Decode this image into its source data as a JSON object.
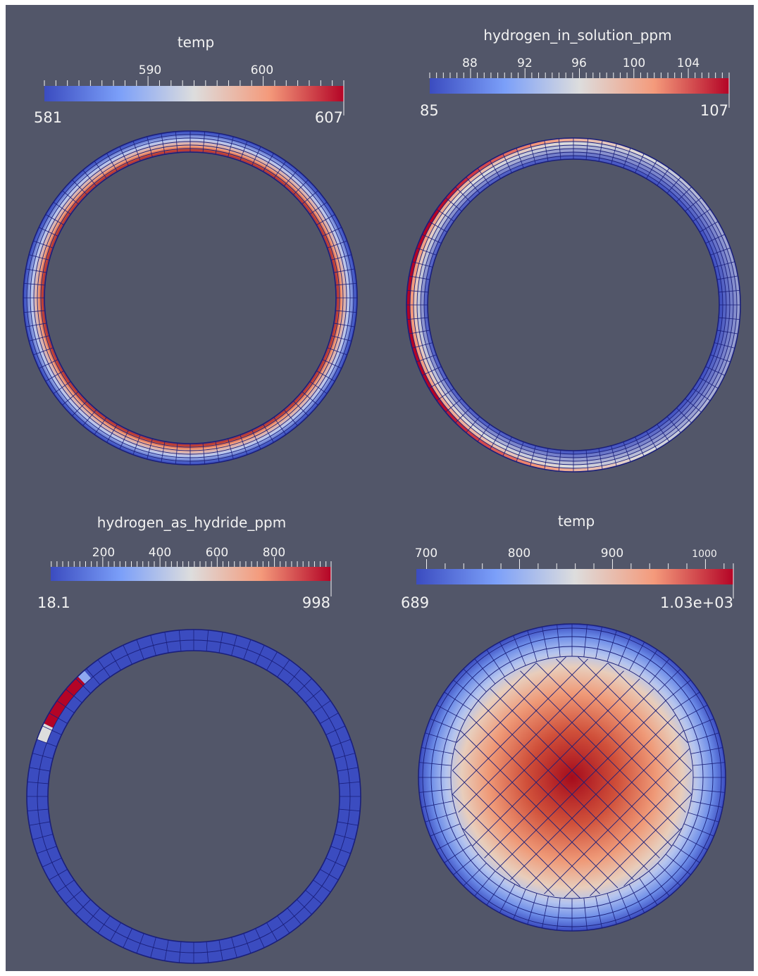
{
  "panels": [
    {
      "id": "panel-1",
      "title": "temp",
      "min_label": "581",
      "max_label": "607",
      "range": [
        581,
        607
      ],
      "major_ticks": [
        {
          "value": 590,
          "label": "590"
        },
        {
          "value": 600,
          "label": "600"
        }
      ],
      "shape": "ring",
      "hot_side": "inner"
    },
    {
      "id": "panel-2",
      "title": "hydrogen_in_solution_ppm",
      "min_label": "85",
      "max_label": "107",
      "range": [
        85,
        107
      ],
      "major_ticks": [
        {
          "value": 88,
          "label": "88"
        },
        {
          "value": 92,
          "label": "92"
        },
        {
          "value": 96,
          "label": "96"
        },
        {
          "value": 100,
          "label": "100"
        },
        {
          "value": 104,
          "label": "104"
        }
      ],
      "shape": "ring",
      "hot_side": "outer-left"
    },
    {
      "id": "panel-3",
      "title": "hydrogen_as_hydride_ppm",
      "min_label": "18.1",
      "max_label": "998",
      "range": [
        18.1,
        998
      ],
      "major_ticks": [
        {
          "value": 200,
          "label": "200"
        },
        {
          "value": 400,
          "label": "400"
        },
        {
          "value": 600,
          "label": "600"
        },
        {
          "value": 800,
          "label": "800"
        }
      ],
      "shape": "ring",
      "hot_side": "outer-upper-left-sliver"
    },
    {
      "id": "panel-4",
      "title": "temp",
      "min_label": "689",
      "max_label": "1.03e+03",
      "range": [
        689,
        1030
      ],
      "major_ticks": [
        {
          "value": 700,
          "label": "700"
        },
        {
          "value": 800,
          "label": "800"
        },
        {
          "value": 900,
          "label": "900"
        },
        {
          "value": 1000,
          "label": "1000"
        }
      ],
      "shape": "disk",
      "hot_side": "center"
    }
  ],
  "colors": {
    "background": "#525669",
    "cool": "#3b4cc0",
    "neutral": "#dddddd",
    "warm": "#b40426",
    "mesh_line": "#1a1f7a",
    "text": "#f2f2f2"
  }
}
